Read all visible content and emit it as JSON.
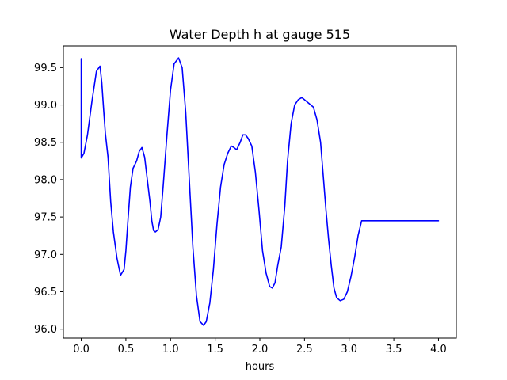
{
  "chart_data": {
    "type": "line",
    "title": "Water Depth h at gauge 515",
    "xlabel": "hours",
    "ylabel": "",
    "xlim": [
      -0.2,
      4.2
    ],
    "ylim": [
      95.88,
      99.79
    ],
    "xticks": [
      0.0,
      0.5,
      1.0,
      1.5,
      2.0,
      2.5,
      3.0,
      3.5,
      4.0
    ],
    "xtick_labels": [
      "0.0",
      "0.5",
      "1.0",
      "1.5",
      "2.0",
      "2.5",
      "3.0",
      "3.5",
      "4.0"
    ],
    "yticks": [
      96.0,
      96.5,
      97.0,
      97.5,
      98.0,
      98.5,
      99.0,
      99.5
    ],
    "ytick_labels": [
      "96.0",
      "96.5",
      "97.0",
      "97.5",
      "98.0",
      "98.5",
      "99.0",
      "99.5"
    ],
    "grid": false,
    "series": [
      {
        "color": "#0000ff",
        "x": [
          0.0,
          0.0,
          0.0,
          0.03,
          0.07,
          0.12,
          0.17,
          0.21,
          0.23,
          0.25,
          0.27,
          0.3,
          0.33,
          0.36,
          0.4,
          0.44,
          0.48,
          0.5,
          0.52,
          0.55,
          0.58,
          0.62,
          0.65,
          0.68,
          0.71,
          0.74,
          0.77,
          0.79,
          0.81,
          0.83,
          0.86,
          0.89,
          0.92,
          0.96,
          1.0,
          1.04,
          1.09,
          1.13,
          1.17,
          1.21,
          1.25,
          1.29,
          1.33,
          1.37,
          1.4,
          1.44,
          1.48,
          1.52,
          1.56,
          1.6,
          1.64,
          1.68,
          1.71,
          1.74,
          1.78,
          1.81,
          1.84,
          1.87,
          1.91,
          1.95,
          1.99,
          2.03,
          2.07,
          2.11,
          2.14,
          2.17,
          2.2,
          2.24,
          2.28,
          2.31,
          2.35,
          2.39,
          2.43,
          2.47,
          2.51,
          2.55,
          2.6,
          2.64,
          2.68,
          2.71,
          2.74,
          2.77,
          2.8,
          2.83,
          2.86,
          2.9,
          2.94,
          2.98,
          3.02,
          3.06,
          3.1,
          3.14,
          3.19,
          3.23,
          3.27,
          3.31,
          3.35,
          3.39,
          3.43,
          3.47,
          3.51,
          3.55,
          3.59,
          3.63,
          3.67,
          3.71,
          3.74,
          3.77,
          3.8,
          3.83,
          3.87,
          3.91,
          3.95,
          4.0
        ],
        "y": [
          99.62,
          98.5,
          98.29,
          98.35,
          98.6,
          99.05,
          99.45,
          99.52,
          99.3,
          98.95,
          98.62,
          98.3,
          97.7,
          97.3,
          96.95,
          96.72,
          96.8,
          97.05,
          97.4,
          97.9,
          98.15,
          98.25,
          98.38,
          98.43,
          98.3,
          98.0,
          97.7,
          97.45,
          97.32,
          97.3,
          97.33,
          97.5,
          97.95,
          98.6,
          99.2,
          99.55,
          99.63,
          99.5,
          98.9,
          98.0,
          97.1,
          96.45,
          96.1,
          96.05,
          96.1,
          96.35,
          96.8,
          97.4,
          97.9,
          98.2,
          98.35,
          98.45,
          98.43,
          98.4,
          98.5,
          98.6,
          98.6,
          98.55,
          98.45,
          98.1,
          97.6,
          97.05,
          96.75,
          96.57,
          96.55,
          96.62,
          96.85,
          97.1,
          97.65,
          98.25,
          98.75,
          99.0,
          99.07,
          99.1,
          99.06,
          99.02,
          98.97,
          98.8,
          98.5,
          98.05,
          97.6,
          97.2,
          96.85,
          96.55,
          96.42,
          96.38,
          96.4,
          96.5,
          96.7,
          96.95,
          97.25,
          97.45,
          97.45,
          97.45,
          97.45,
          97.45,
          97.45,
          97.45,
          97.45,
          97.45,
          97.45,
          97.45,
          97.45,
          97.45,
          97.45,
          97.45,
          97.45,
          97.45,
          97.45,
          97.45,
          97.45,
          97.45,
          97.45,
          97.45
        ]
      }
    ]
  }
}
